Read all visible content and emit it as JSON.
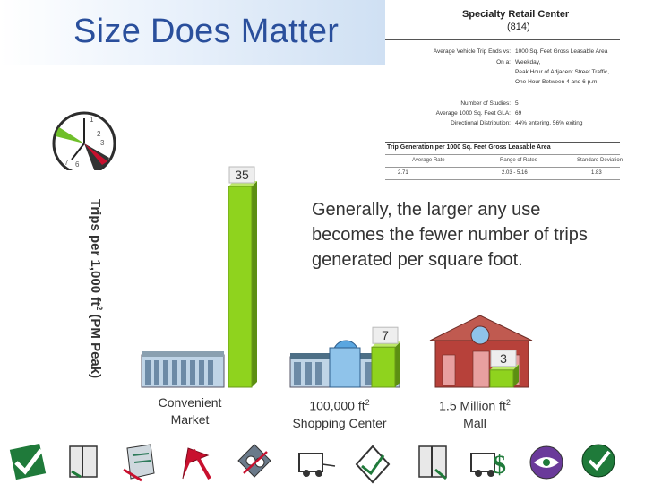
{
  "slide": {
    "title": "Size Does Matter",
    "note": "Generally, the larger any use becomes the fewer number of trips generated per square foot."
  },
  "clock": {
    "numbers": [
      "1",
      "2",
      "3",
      "5",
      "6",
      "7"
    ]
  },
  "reference_card": {
    "heading": "Specialty Retail Center",
    "code": "(814)",
    "rows": [
      {
        "label": "Average Vehicle Trip Ends vs:",
        "value": "1000 Sq. Feet Gross Leasable Area"
      },
      {
        "label": "On a:",
        "value": "Weekday,"
      },
      {
        "label": "",
        "value": "Peak Hour of Adjacent Street Traffic,"
      },
      {
        "label": "",
        "value": "One Hour Between 4 and 6 p.m."
      },
      {
        "label": "Number of Studies:",
        "value": "5"
      },
      {
        "label": "Average 1000 Sq. Feet GLA:",
        "value": "69"
      },
      {
        "label": "Directional Distribution:",
        "value": "44% entering, 56% exiting"
      }
    ],
    "table_title": "Trip Generation per 1000 Sq. Feet Gross Leasable Area",
    "columns": [
      "Average Rate",
      "Range of Rates",
      "Standard Deviation"
    ],
    "cells": [
      "2.71",
      "2.03  -  5.16",
      "1.83"
    ]
  },
  "chart_data": {
    "type": "bar",
    "ylabel": "Trips per 1,000 ft",
    "ylabel_sup": "2",
    "ylabel_suffix": " (PM Peak)",
    "categories": [
      {
        "line1": "Convenient",
        "line2": "Market",
        "sup": ""
      },
      {
        "line1": "100,000 ft",
        "line2": "Shopping Center",
        "sup": "2"
      },
      {
        "line1": "1.5 Million ft",
        "line2": "Mall",
        "sup": "2"
      }
    ],
    "values": [
      35,
      7,
      3
    ],
    "value_labels": [
      "35",
      "7",
      "3"
    ],
    "ylim": [
      0,
      35
    ],
    "bar_color": "#8fd31e"
  },
  "icons": [
    "checkmark-icon",
    "book-icon",
    "document-icon",
    "pen-icon",
    "flag-icon",
    "scissors-icon",
    "car-icon",
    "rings-icon",
    "book-icon",
    "car-icon",
    "dollar-icon",
    "eye-icon",
    "checkmark-icon"
  ]
}
